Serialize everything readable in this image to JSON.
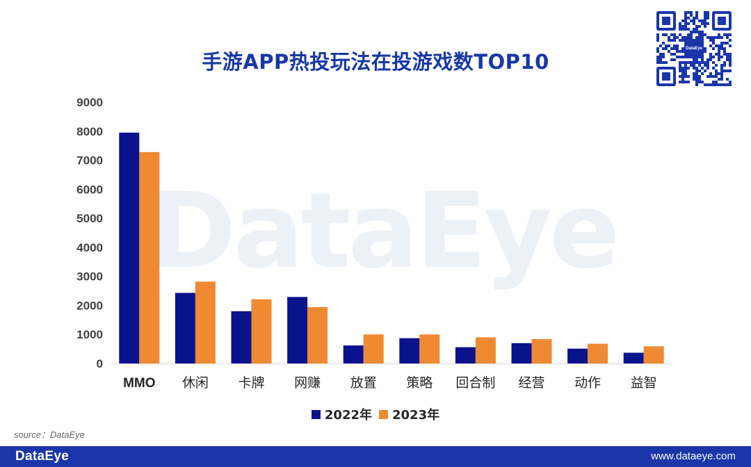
{
  "header": {
    "title": "手游APP热投玩法在投游戏数TOP10"
  },
  "watermark": "DataEye",
  "qr": {
    "logo_text": "DataEye"
  },
  "chart_data": {
    "type": "bar",
    "title": "手游APP热投玩法在投游戏数TOP10",
    "categories": [
      "MMO",
      "休闲",
      "卡牌",
      "网赚",
      "放置",
      "策略",
      "回合制",
      "经营",
      "动作",
      "益智"
    ],
    "series": [
      {
        "name": "2022年",
        "color": "#0b138c",
        "values": [
          7950,
          2430,
          1800,
          2290,
          620,
          870,
          560,
          700,
          510,
          370
        ]
      },
      {
        "name": "2023年",
        "color": "#ef8a32",
        "values": [
          7280,
          2820,
          2210,
          1940,
          1000,
          1000,
          900,
          840,
          680,
          590
        ]
      }
    ],
    "yticks": [
      "0",
      "1000",
      "2000",
      "3000",
      "4000",
      "5000",
      "6000",
      "7000",
      "8000",
      "9000"
    ],
    "ylim": [
      0,
      9000
    ],
    "xlabel": "",
    "ylabel": "",
    "grid": false,
    "legend": "bottom"
  },
  "legend": [
    {
      "label": "2022年",
      "color": "#0b138c"
    },
    {
      "label": "2023年",
      "color": "#ef8a32"
    }
  ],
  "source": "source：DataEye",
  "footer": {
    "logo": "DataEye",
    "url": "www.dataeye.com"
  }
}
